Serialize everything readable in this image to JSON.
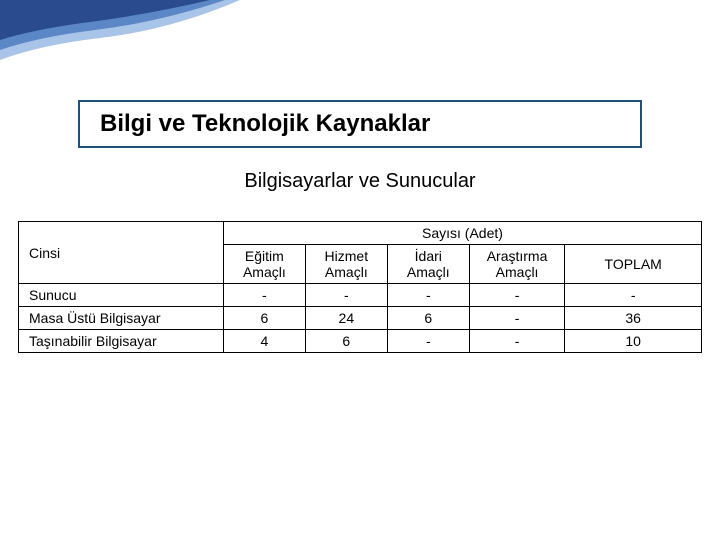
{
  "colors": {
    "title_border": "#1f4e79",
    "text": "#000000",
    "table_border": "#000000",
    "swoosh_dark": "#2a4b8d",
    "swoosh_mid": "#5b87c7",
    "swoosh_light": "#a8c4e8"
  },
  "layout": {
    "title_fontsize": 24,
    "subtitle_fontsize": 20,
    "table_fontsize": 14
  },
  "title": "Bilgi ve Teknolojik Kaynaklar",
  "subtitle": "Bilgisayarlar ve Sunucular",
  "table": {
    "corner_label": "Cinsi",
    "group_header": "Sayısı (Adet)",
    "columns": [
      "Eğitim Amaçlı",
      "Hizmet Amaçlı",
      "İdari Amaçlı",
      "Araştırma Amaçlı",
      "TOPLAM"
    ],
    "col_widths_pct": [
      30,
      12,
      12,
      12,
      14,
      20
    ],
    "rows": [
      {
        "label": "Sunucu",
        "cells": [
          "-",
          "-",
          "-",
          "-",
          "-"
        ]
      },
      {
        "label": "Masa Üstü Bilgisayar",
        "cells": [
          "6",
          "24",
          "6",
          "-",
          "36"
        ]
      },
      {
        "label": "Taşınabilir Bilgisayar",
        "cells": [
          "4",
          "6",
          "-",
          "-",
          "10"
        ]
      }
    ]
  }
}
